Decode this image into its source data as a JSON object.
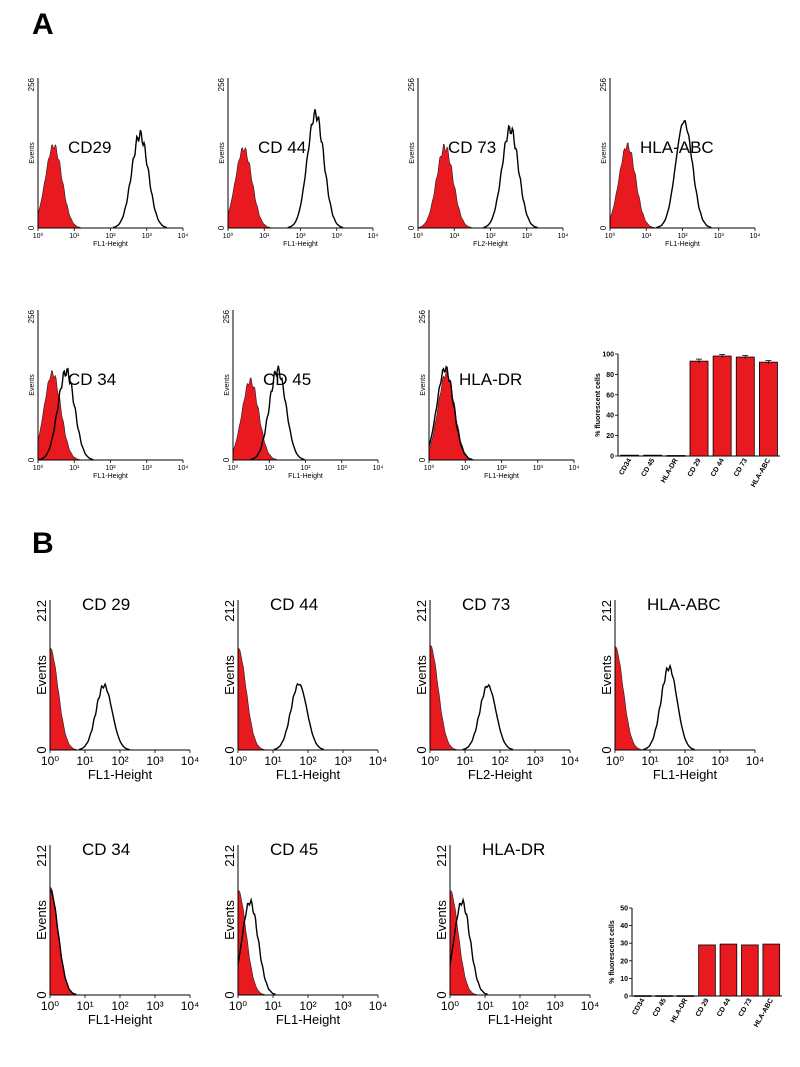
{
  "sections": [
    {
      "label": "A",
      "histogram_charts": [
        {
          "title": "CD29",
          "type": "histogram",
          "ymax_label": "256",
          "ylabel": "Events",
          "xlabel": "FL1-Height",
          "x_ticks": [
            "10⁰",
            "10¹",
            "10²",
            "10³",
            "10⁴"
          ],
          "x_scale": "log",
          "xlim": [
            1,
            10000
          ],
          "series": [
            {
              "filled": true,
              "color": "#e8191f",
              "peak_x": 2.7,
              "peak_height": 0.55
            },
            {
              "filled": false,
              "color": "#000000",
              "peak_x": 650,
              "peak_height": 0.62
            }
          ]
        },
        {
          "title": "CD 44",
          "type": "histogram",
          "ymax_label": "256",
          "ylabel": "Events",
          "xlabel": "FL1-Height",
          "x_ticks": [
            "10⁰",
            "10¹",
            "10²",
            "10³",
            "10⁴"
          ],
          "x_scale": "log",
          "xlim": [
            1,
            10000
          ],
          "series": [
            {
              "filled": true,
              "color": "#e8191f",
              "peak_x": 2.7,
              "peak_height": 0.53
            },
            {
              "filled": false,
              "color": "#000000",
              "peak_x": 260,
              "peak_height": 0.76
            }
          ]
        },
        {
          "title": "CD 73",
          "type": "histogram",
          "ymax_label": "256",
          "ylabel": "Events",
          "xlabel": "FL2-Height",
          "x_ticks": [
            "10⁰",
            "10¹",
            "10²",
            "10³",
            "10⁴"
          ],
          "x_scale": "log",
          "xlim": [
            1,
            10000
          ],
          "series": [
            {
              "filled": true,
              "color": "#e8191f",
              "peak_x": 5.5,
              "peak_height": 0.54
            },
            {
              "filled": false,
              "color": "#000000",
              "peak_x": 350,
              "peak_height": 0.66
            }
          ]
        },
        {
          "title": "HLA-ABC",
          "type": "histogram",
          "ymax_label": "256",
          "ylabel": "Events",
          "xlabel": "FL1-Height",
          "x_ticks": [
            "10⁰",
            "10¹",
            "10²",
            "10³",
            "10⁴"
          ],
          "x_scale": "log",
          "xlim": [
            1,
            10000
          ],
          "series": [
            {
              "filled": true,
              "color": "#e8191f",
              "peak_x": 3.0,
              "peak_height": 0.55
            },
            {
              "filled": false,
              "color": "#000000",
              "peak_x": 110,
              "peak_height": 0.71
            }
          ]
        },
        {
          "title": "CD 34",
          "type": "histogram",
          "ymax_label": "256",
          "ylabel": "Events",
          "xlabel": "FL1-Height",
          "x_ticks": [
            "10⁰",
            "10¹",
            "10²",
            "10³",
            "10⁴"
          ],
          "x_scale": "log",
          "xlim": [
            1,
            10000
          ],
          "series": [
            {
              "filled": true,
              "color": "#e8191f",
              "peak_x": 2.5,
              "peak_height": 0.58
            },
            {
              "filled": false,
              "color": "#000000",
              "peak_x": 6,
              "peak_height": 0.59
            }
          ]
        },
        {
          "title": "CD 45",
          "type": "histogram",
          "ymax_label": "256",
          "ylabel": "Events",
          "xlabel": "FL1-Height",
          "x_ticks": [
            "10⁰",
            "10¹",
            "10²",
            "10³",
            "10⁴"
          ],
          "x_scale": "log",
          "xlim": [
            1,
            10000
          ],
          "series": [
            {
              "filled": true,
              "color": "#e8191f",
              "peak_x": 3.0,
              "peak_height": 0.53
            },
            {
              "filled": false,
              "color": "#000000",
              "peak_x": 17,
              "peak_height": 0.6
            }
          ]
        },
        {
          "title": "HLA-DR",
          "type": "histogram",
          "ymax_label": "256",
          "ylabel": "Events",
          "xlabel": "FL1-Height",
          "x_ticks": [
            "10⁰",
            "10¹",
            "10²",
            "10³",
            "10⁴"
          ],
          "x_scale": "log",
          "xlim": [
            1,
            10000
          ],
          "series": [
            {
              "filled": true,
              "color": "#e8191f",
              "peak_x": 3.0,
              "peak_height": 0.58
            },
            {
              "filled": false,
              "color": "#000000",
              "peak_x": 2.8,
              "peak_height": 0.61
            }
          ]
        }
      ],
      "bar_chart": {
        "type": "bar",
        "title": "",
        "xlabel": "",
        "ylabel": "% fluorescent cells",
        "ylim": [
          0,
          100
        ],
        "y_ticks": [
          "0",
          "20",
          "40",
          "60",
          "80",
          "100"
        ],
        "bar_color": "#e8191f",
        "categories": [
          "CD34",
          "CD 45",
          "HLA-DR",
          "CD 29",
          "CD 44",
          "CD 73",
          "HLA-ABC"
        ],
        "values": [
          0.8,
          0.8,
          0.5,
          93,
          98,
          97,
          92
        ],
        "errors": [
          0,
          0,
          0,
          2,
          1.5,
          1.5,
          1.5
        ]
      }
    },
    {
      "label": "B",
      "histogram_charts": [
        {
          "title": "CD 29",
          "type": "histogram",
          "ymax_label": "212",
          "ylabel": "Events",
          "xlabel": "FL1-Height",
          "x_ticks": [
            "10⁰",
            "10¹",
            "10²",
            "10³",
            "10⁴"
          ],
          "x_scale": "log",
          "xlim": [
            1,
            10000
          ],
          "series": [
            {
              "filled": true,
              "color": "#e8191f",
              "peak_x": 1,
              "peak_height": 0.68
            },
            {
              "filled": false,
              "color": "#000000",
              "peak_x": 35,
              "peak_height": 0.43
            }
          ]
        },
        {
          "title": "CD 44",
          "type": "histogram",
          "ymax_label": "212",
          "ylabel": "Events",
          "xlabel": "FL1-Height",
          "x_ticks": [
            "10⁰",
            "10¹",
            "10²",
            "10³",
            "10⁴"
          ],
          "x_scale": "log",
          "xlim": [
            1,
            10000
          ],
          "series": [
            {
              "filled": true,
              "color": "#e8191f",
              "peak_x": 1,
              "peak_height": 0.68
            },
            {
              "filled": false,
              "color": "#000000",
              "peak_x": 55,
              "peak_height": 0.44
            }
          ]
        },
        {
          "title": "CD 73",
          "type": "histogram",
          "ymax_label": "212",
          "ylabel": "Events",
          "xlabel": "FL2-Height",
          "x_ticks": [
            "10⁰",
            "10¹",
            "10²",
            "10³",
            "10⁴"
          ],
          "x_scale": "log",
          "xlim": [
            1,
            10000
          ],
          "series": [
            {
              "filled": true,
              "color": "#e8191f",
              "peak_x": 1,
              "peak_height": 0.7
            },
            {
              "filled": false,
              "color": "#000000",
              "peak_x": 45,
              "peak_height": 0.43
            }
          ]
        },
        {
          "title": "HLA-ABC",
          "type": "histogram",
          "ymax_label": "212",
          "ylabel": "Events",
          "xlabel": "FL1-Height",
          "x_ticks": [
            "10⁰",
            "10¹",
            "10²",
            "10³",
            "10⁴"
          ],
          "x_scale": "log",
          "xlim": [
            1,
            10000
          ],
          "series": [
            {
              "filled": true,
              "color": "#e8191f",
              "peak_x": 1,
              "peak_height": 0.69
            },
            {
              "filled": false,
              "color": "#000000",
              "peak_x": 35,
              "peak_height": 0.55
            }
          ]
        },
        {
          "title": "CD 34",
          "type": "histogram",
          "ymax_label": "212",
          "ylabel": "Events",
          "xlabel": "FL1-Height",
          "x_ticks": [
            "10⁰",
            "10¹",
            "10²",
            "10³",
            "10⁴"
          ],
          "x_scale": "log",
          "xlim": [
            1,
            10000
          ],
          "series": [
            {
              "filled": true,
              "color": "#e8191f",
              "peak_x": 1,
              "peak_height": 0.72
            },
            {
              "filled": false,
              "color": "#000000",
              "peak_x": 1,
              "peak_height": 0.7
            }
          ]
        },
        {
          "title": "CD  45",
          "type": "histogram",
          "ymax_label": "212",
          "ylabel": "Events",
          "xlabel": "FL1-Height",
          "x_ticks": [
            "10⁰",
            "10¹",
            "10²",
            "10³",
            "10⁴"
          ],
          "x_scale": "log",
          "xlim": [
            1,
            10000
          ],
          "series": [
            {
              "filled": true,
              "color": "#e8191f",
              "peak_x": 1,
              "peak_height": 0.7
            },
            {
              "filled": false,
              "color": "#000000",
              "peak_x": 2.2,
              "peak_height": 0.62
            }
          ]
        },
        {
          "title": "HLA-DR",
          "type": "histogram",
          "ymax_label": "212",
          "ylabel": "Events",
          "xlabel": "FL1-Height",
          "x_ticks": [
            "10⁰",
            "10¹",
            "10²",
            "10³",
            "10⁴"
          ],
          "x_scale": "log",
          "xlim": [
            1,
            10000
          ],
          "series": [
            {
              "filled": true,
              "color": "#e8191f",
              "peak_x": 1,
              "peak_height": 0.7
            },
            {
              "filled": false,
              "color": "#000000",
              "peak_x": 2.2,
              "peak_height": 0.62
            }
          ]
        }
      ],
      "bar_chart": {
        "type": "bar",
        "title": "",
        "xlabel": "",
        "ylabel": "% fluorescent cells",
        "ylim": [
          0,
          50
        ],
        "y_ticks": [
          "0",
          "10",
          "20",
          "30",
          "40",
          "50"
        ],
        "bar_color": "#e8191f",
        "categories": [
          "CD34",
          "CD 45",
          "HLA-DR",
          "CD 29",
          "CD 44",
          "CD 73",
          "HLA-ABC"
        ],
        "values": [
          0.2,
          0.2,
          0.2,
          29,
          29.5,
          29,
          29.5
        ],
        "errors": [
          0,
          0,
          0,
          0,
          0,
          0,
          0
        ]
      }
    }
  ]
}
